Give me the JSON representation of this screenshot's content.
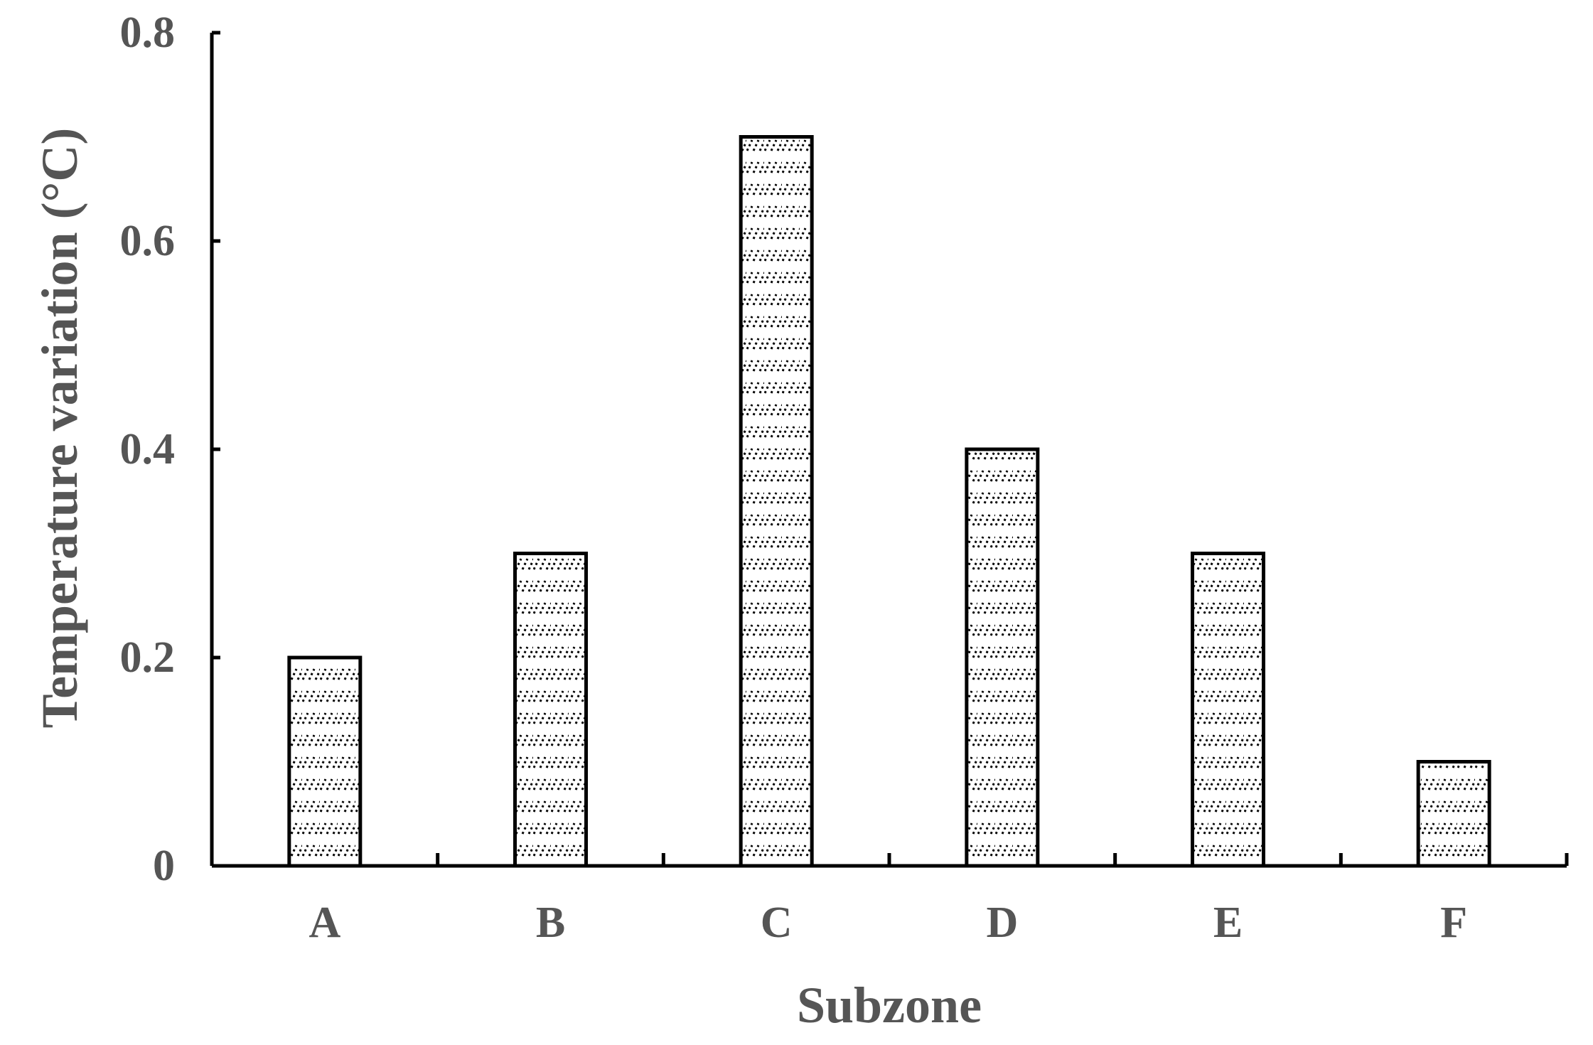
{
  "chart_data": {
    "type": "bar",
    "categories": [
      "A",
      "B",
      "C",
      "D",
      "E",
      "F"
    ],
    "values": [
      0.2,
      0.3,
      0.7,
      0.4,
      0.3,
      0.1
    ],
    "title": "",
    "xlabel": "Subzone",
    "ylabel": "Temperature variation  (°C)",
    "ylim": [
      0,
      0.8
    ],
    "yticks": [
      0,
      0.2,
      0.4,
      0.6,
      0.8
    ],
    "ytick_labels": [
      "0",
      "0.2",
      "0.4",
      "0.6",
      "0.8"
    ],
    "grid": false,
    "legend": "none",
    "bar_fill": "hatched pattern",
    "colors": {
      "axis": "#000000",
      "bar_edge": "#000000",
      "bar_fill": "#ffffff",
      "hatch": "#000000",
      "text": "#555555"
    }
  }
}
